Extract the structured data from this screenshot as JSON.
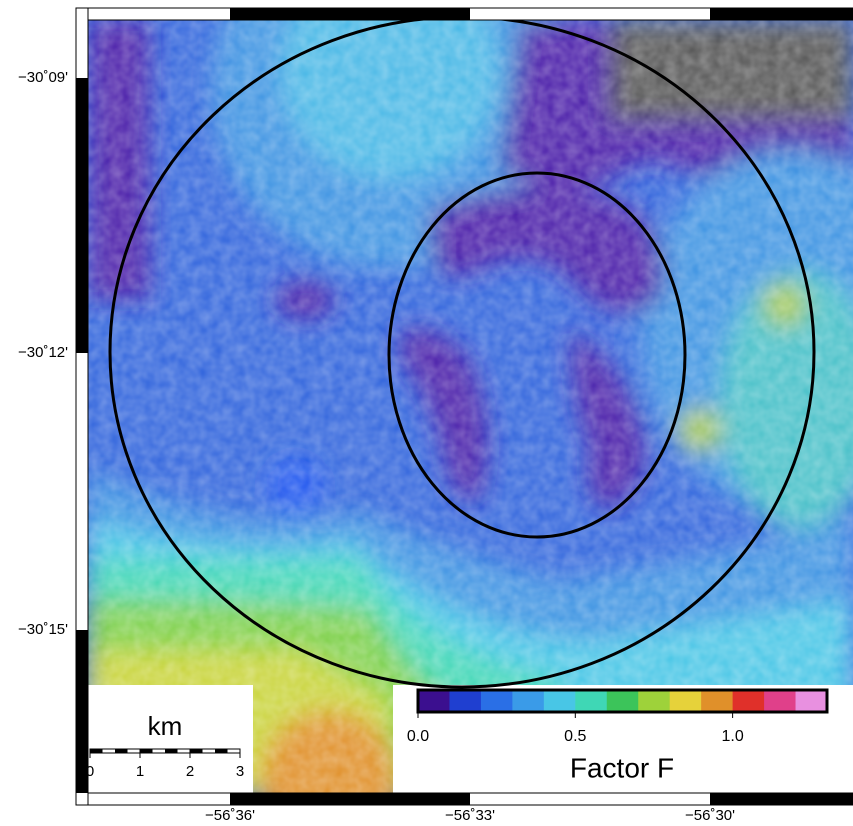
{
  "map": {
    "lat_labels": [
      "−30˚09'",
      "−30˚12'",
      "−30˚15'"
    ],
    "lon_labels": [
      "−56˚36'",
      "−56˚33'",
      "−56˚30'"
    ]
  },
  "scale_bar": {
    "label": "km",
    "ticks": [
      0,
      1,
      2,
      3
    ]
  },
  "colorbar": {
    "label": "Factor F",
    "range": [
      0,
      1.3
    ],
    "colors": [
      "#3b0f8f",
      "#1f3fd0",
      "#2a6fe6",
      "#3a9be8",
      "#48c6e6",
      "#3fd7b5",
      "#3cc45a",
      "#9ed23a",
      "#e6d23a",
      "#e0902a",
      "#e0302a",
      "#e0408a",
      "#e890e0"
    ],
    "ticks": [
      {
        "value": 0,
        "label": "0.0"
      },
      {
        "value": 0.5,
        "label": "0.5"
      },
      {
        "value": 1,
        "label": "1.0"
      }
    ]
  }
}
